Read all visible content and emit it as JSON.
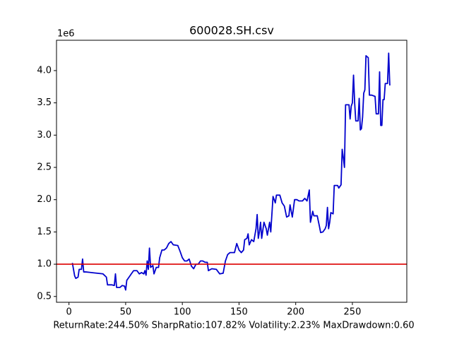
{
  "chart_data": {
    "type": "line",
    "title": "600028.SH.csv",
    "offset_label": "1e6",
    "footer": "ReturnRate:244.50% SharpRatio:107.82% Volatility:2.23%  MaxDrawdown:0.60",
    "color": "#0000cd",
    "hline": {
      "value": 1,
      "color": "#dd0000"
    },
    "xlim": [
      -11,
      298
    ],
    "xticks": [
      0,
      50,
      100,
      150,
      200,
      250
    ],
    "ylim": [
      0.41,
      4.47
    ],
    "yticks": [
      {
        "value": 0.5,
        "label": "0.5"
      },
      {
        "value": 1,
        "label": "1.0"
      },
      {
        "value": 1.5,
        "label": "1.5"
      },
      {
        "value": 2,
        "label": "2.0"
      },
      {
        "value": 2.5,
        "label": "2.5"
      },
      {
        "value": 3,
        "label": "3.0"
      },
      {
        "value": 3.5,
        "label": "3.5"
      },
      {
        "value": 4,
        "label": "4.0"
      }
    ],
    "x": [
      3,
      5,
      6,
      8,
      9,
      11,
      12,
      13,
      15,
      20,
      25,
      30,
      33,
      34,
      38,
      40,
      41,
      42,
      45,
      47,
      49,
      50,
      51,
      53,
      55,
      57,
      60,
      62,
      64,
      66,
      67,
      68,
      69,
      70,
      71,
      72,
      74,
      75,
      77,
      79,
      80,
      82,
      84,
      86,
      88,
      90,
      92,
      96,
      98,
      100,
      102,
      104,
      106,
      108,
      110,
      112,
      114,
      116,
      118,
      120,
      122,
      123,
      126,
      130,
      133,
      136,
      138,
      140,
      142,
      146,
      148,
      150,
      152,
      154,
      155,
      157,
      158,
      159,
      161,
      163,
      165,
      166,
      167,
      168,
      169,
      170,
      172,
      174,
      175,
      177,
      178,
      180,
      182,
      183,
      186,
      188,
      190,
      192,
      194,
      195,
      197,
      199,
      201,
      203,
      206,
      208,
      210,
      212,
      213,
      215,
      216,
      219,
      221,
      222,
      224,
      226,
      227,
      228,
      229,
      230,
      231,
      233,
      234,
      237,
      238,
      240,
      241,
      242,
      243,
      244,
      247,
      248,
      249,
      250,
      251,
      252,
      253,
      255,
      256,
      257,
      258,
      259,
      260,
      261,
      262,
      264,
      265,
      267,
      270,
      271,
      273,
      274,
      275,
      276,
      277,
      278,
      279,
      281,
      282,
      283
    ],
    "values": [
      1.02,
      0.82,
      0.78,
      0.8,
      0.92,
      0.92,
      1.08,
      0.88,
      0.88,
      0.87,
      0.86,
      0.85,
      0.8,
      0.68,
      0.68,
      0.67,
      0.85,
      0.64,
      0.64,
      0.67,
      0.66,
      0.6,
      0.75,
      0.8,
      0.85,
      0.9,
      0.9,
      0.85,
      0.87,
      0.85,
      0.9,
      0.83,
      1.05,
      0.92,
      1.25,
      0.95,
      0.98,
      0.85,
      0.95,
      0.95,
      1.1,
      1.22,
      1.22,
      1.25,
      1.32,
      1.35,
      1.3,
      1.29,
      1.2,
      1.1,
      1.05,
      1.05,
      1.08,
      0.97,
      0.93,
      1.0,
      1.0,
      1.05,
      1.05,
      1.03,
      1.03,
      0.9,
      0.93,
      0.92,
      0.85,
      0.86,
      1.05,
      1.15,
      1.18,
      1.18,
      1.32,
      1.22,
      1.18,
      1.22,
      1.38,
      1.4,
      1.47,
      1.3,
      1.38,
      1.35,
      1.55,
      1.77,
      1.4,
      1.5,
      1.65,
      1.4,
      1.65,
      1.55,
      1.45,
      1.65,
      1.5,
      2.05,
      1.95,
      2.07,
      2.07,
      1.95,
      1.9,
      1.73,
      1.75,
      1.92,
      1.73,
      2.0,
      2.0,
      1.98,
      1.98,
      2.02,
      1.98,
      2.15,
      1.65,
      1.82,
      1.75,
      1.75,
      1.58,
      1.49,
      1.5,
      1.55,
      1.6,
      1.88,
      1.55,
      1.65,
      1.8,
      1.78,
      2.22,
      2.22,
      2.18,
      2.23,
      2.78,
      2.65,
      2.5,
      3.47,
      3.47,
      3.25,
      3.45,
      3.5,
      3.93,
      3.5,
      3.22,
      3.22,
      3.57,
      3.08,
      3.1,
      3.28,
      3.65,
      3.7,
      4.23,
      4.2,
      3.62,
      3.62,
      3.6,
      3.33,
      3.33,
      3.98,
      3.15,
      3.15,
      3.55,
      3.55,
      3.8,
      3.8,
      4.27,
      3.77
    ]
  }
}
